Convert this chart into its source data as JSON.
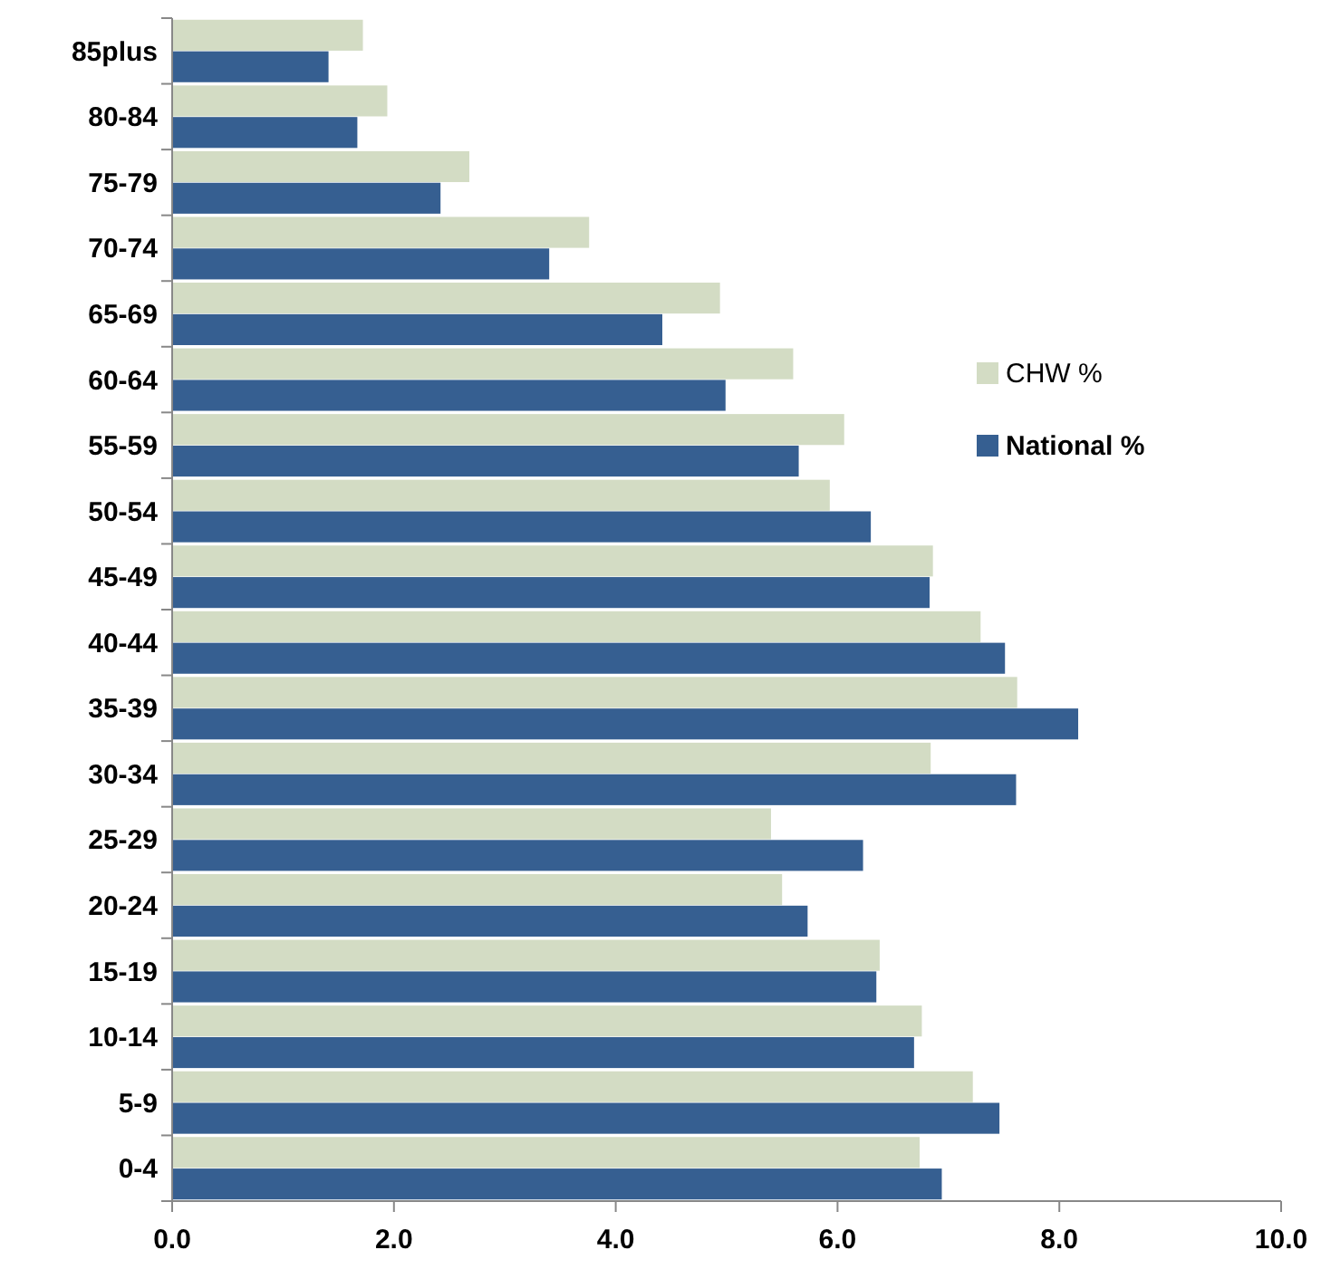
{
  "chart_data": {
    "type": "bar",
    "orientation": "horizontal",
    "categories": [
      "85plus",
      "80-84",
      "75-79",
      "70-74",
      "65-69",
      "60-64",
      "55-59",
      "50-54",
      "45-49",
      "40-44",
      "35-39",
      "30-34",
      "25-29",
      "20-24",
      "15-19",
      "10-14",
      "5-9",
      "0-4"
    ],
    "series": [
      {
        "name": "CHW %",
        "color": "#d3dcc4",
        "values": [
          1.72,
          1.94,
          2.68,
          3.76,
          4.94,
          5.6,
          6.06,
          5.93,
          6.86,
          7.29,
          7.62,
          6.84,
          5.4,
          5.5,
          6.38,
          6.76,
          7.22,
          6.74
        ]
      },
      {
        "name": "National %",
        "color": "#365f91",
        "values": [
          1.41,
          1.67,
          2.42,
          3.4,
          4.42,
          4.99,
          5.65,
          6.3,
          6.83,
          7.51,
          8.17,
          7.61,
          6.23,
          5.73,
          6.35,
          6.69,
          7.46,
          6.94
        ]
      }
    ],
    "xlim": [
      0,
      10
    ],
    "xticks": [
      {
        "value": 0,
        "label": "0.0"
      },
      {
        "value": 2,
        "label": "2.0"
      },
      {
        "value": 4,
        "label": "4.0"
      },
      {
        "value": 6,
        "label": "6.0"
      },
      {
        "value": 8,
        "label": "8.0"
      },
      {
        "value": 10,
        "label": "10.0"
      }
    ],
    "legend": "right",
    "grid": false
  }
}
